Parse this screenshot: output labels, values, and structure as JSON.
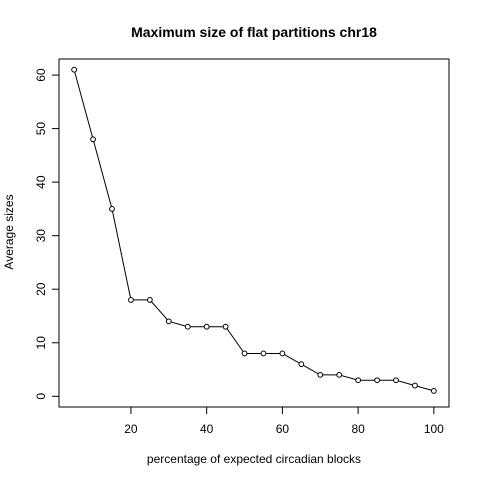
{
  "chart_data": {
    "type": "line",
    "title": "Maximum size of flat partitions chr18",
    "xlabel": "percentage of expected circadian blocks",
    "ylabel": "Average sizes",
    "xlim": [
      1,
      104
    ],
    "ylim": [
      -2,
      63
    ],
    "x_ticks": [
      20,
      40,
      60,
      80,
      100
    ],
    "y_ticks": [
      0,
      10,
      20,
      30,
      40,
      50,
      60
    ],
    "grid": false,
    "legend": "none",
    "line_color": "#000000",
    "marker": "open-circle",
    "series": [
      {
        "x": [
          5,
          10,
          15,
          20,
          25,
          30,
          35,
          40,
          45,
          50,
          55,
          60,
          65,
          70,
          75,
          80,
          85,
          90,
          95,
          100
        ],
        "values": [
          61,
          48,
          35,
          18,
          18,
          14,
          13,
          13,
          13,
          8,
          8,
          8,
          6,
          4,
          4,
          3,
          3,
          3,
          2,
          1
        ]
      }
    ]
  }
}
